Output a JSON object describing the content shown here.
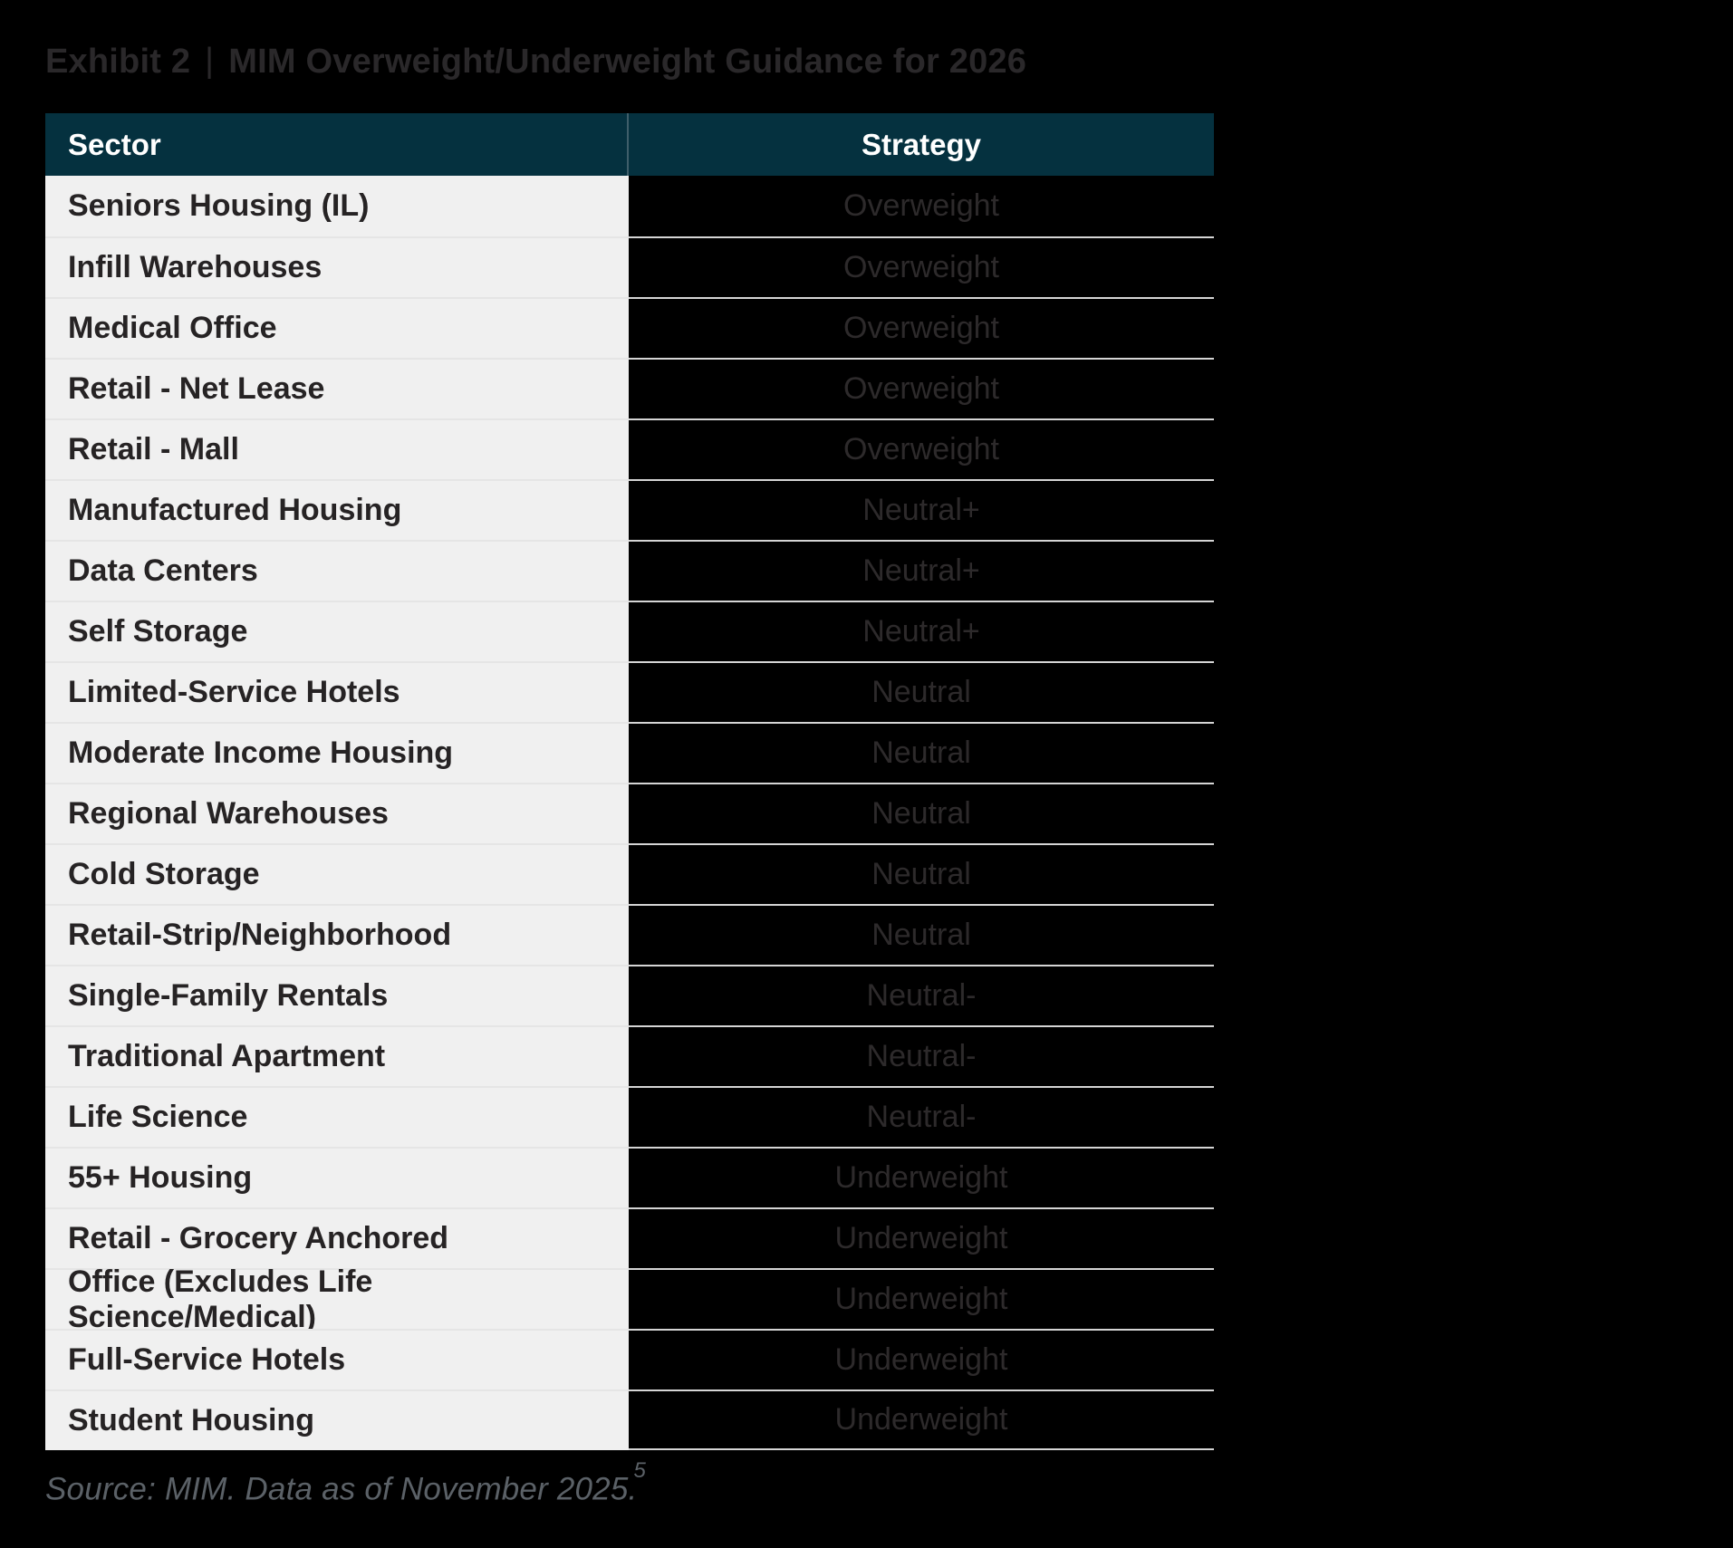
{
  "title": {
    "exhibit_label": "Exhibit 2",
    "separator": "|",
    "text": "MIM Overweight/Underweight Guidance for 2026"
  },
  "table": {
    "columns": {
      "sector": "Sector",
      "strategy": "Strategy"
    },
    "rows": [
      {
        "sector": "Seniors Housing (IL)",
        "strategy": "Overweight"
      },
      {
        "sector": "Infill Warehouses",
        "strategy": "Overweight"
      },
      {
        "sector": "Medical Office",
        "strategy": "Overweight"
      },
      {
        "sector": "Retail - Net Lease",
        "strategy": "Overweight"
      },
      {
        "sector": "Retail - Mall",
        "strategy": "Overweight"
      },
      {
        "sector": "Manufactured Housing",
        "strategy": "Neutral+"
      },
      {
        "sector": "Data Centers",
        "strategy": "Neutral+"
      },
      {
        "sector": "Self Storage",
        "strategy": "Neutral+"
      },
      {
        "sector": "Limited-Service Hotels",
        "strategy": "Neutral"
      },
      {
        "sector": "Moderate Income Housing",
        "strategy": "Neutral"
      },
      {
        "sector": "Regional Warehouses",
        "strategy": "Neutral"
      },
      {
        "sector": "Cold Storage",
        "strategy": "Neutral"
      },
      {
        "sector": "Retail-Strip/Neighborhood",
        "strategy": "Neutral"
      },
      {
        "sector": "Single-Family Rentals",
        "strategy": "Neutral-"
      },
      {
        "sector": "Traditional Apartment",
        "strategy": "Neutral-"
      },
      {
        "sector": "Life Science",
        "strategy": "Neutral-"
      },
      {
        "sector": "55+ Housing",
        "strategy": "Underweight"
      },
      {
        "sector": "Retail - Grocery Anchored",
        "strategy": "Underweight"
      },
      {
        "sector": "Office (Excludes Life Science/Medical)",
        "strategy": "Underweight"
      },
      {
        "sector": "Full-Service Hotels",
        "strategy": "Underweight"
      },
      {
        "sector": "Student Housing",
        "strategy": "Underweight"
      }
    ]
  },
  "footer": {
    "text": "Source: MIM. Data as of November 2025.",
    "superscript": "5"
  },
  "colors": {
    "page_background": "#000000",
    "header_background": "#05313f",
    "header_text": "#ffffff",
    "header_divider": "#3f5e6a",
    "sector_cell_background": "#f0f0f0",
    "sector_text": "#262324",
    "sector_separator": "#e5e5e5",
    "strategy_cell_background": "#000000",
    "strategy_text": "#2d2a2b",
    "strategy_separator": "#d5d5d5",
    "title_text": "#2a282a",
    "footer_text": "#5b6167"
  }
}
